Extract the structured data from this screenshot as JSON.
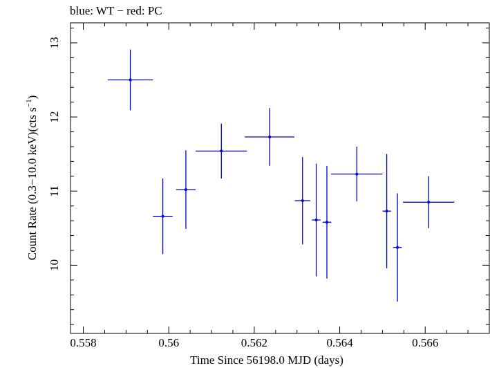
{
  "chart_data": {
    "type": "scatter",
    "title": "blue: WT − red: PC",
    "xlabel": "Time Since 56198.0 MJD (days)",
    "ylabel_main": "Count Rate (0.3−10.0 keV)(cts s",
    "ylabel_sup": "−1",
    "ylabel_close": ")",
    "xlim": [
      0.5577,
      0.5675
    ],
    "ylim": [
      9.08,
      13.27
    ],
    "x_ticks": [
      0.558,
      0.56,
      0.562,
      0.564,
      0.566
    ],
    "x_tick_labels": [
      "0.558",
      "0.56",
      "0.562",
      "0.564",
      "0.566"
    ],
    "y_ticks": [
      10,
      11,
      12,
      13
    ],
    "y_tick_labels": [
      "10",
      "11",
      "12",
      "13"
    ],
    "grid": false,
    "series": [
      {
        "color": "#0000cc",
        "points": [
          {
            "x": 0.5591,
            "y": 12.5,
            "xerr": 0.00053,
            "yerr": 0.41
          },
          {
            "x": 0.55986,
            "y": 10.66,
            "xerr": 0.00023,
            "yerr": 0.51
          },
          {
            "x": 0.5604,
            "y": 11.02,
            "xerr": 0.00023,
            "yerr": 0.53
          },
          {
            "x": 0.56123,
            "y": 11.54,
            "xerr": 0.0006,
            "yerr": 0.37
          },
          {
            "x": 0.56236,
            "y": 11.73,
            "xerr": 0.00058,
            "yerr": 0.39
          },
          {
            "x": 0.56313,
            "y": 10.87,
            "xerr": 0.00018,
            "yerr": 0.59
          },
          {
            "x": 0.56345,
            "y": 10.61,
            "xerr": 0.0001,
            "yerr": 0.76
          },
          {
            "x": 0.5637,
            "y": 10.58,
            "xerr": 0.0001,
            "yerr": 0.76
          },
          {
            "x": 0.5644,
            "y": 11.23,
            "xerr": 0.0006,
            "yerr": 0.37
          },
          {
            "x": 0.5651,
            "y": 10.73,
            "xerr": 0.0001,
            "yerr": 0.77
          },
          {
            "x": 0.56535,
            "y": 10.24,
            "xerr": 0.0001,
            "yerr": 0.73
          },
          {
            "x": 0.56608,
            "y": 10.85,
            "xerr": 0.0006,
            "yerr": 0.35
          }
        ]
      }
    ]
  }
}
